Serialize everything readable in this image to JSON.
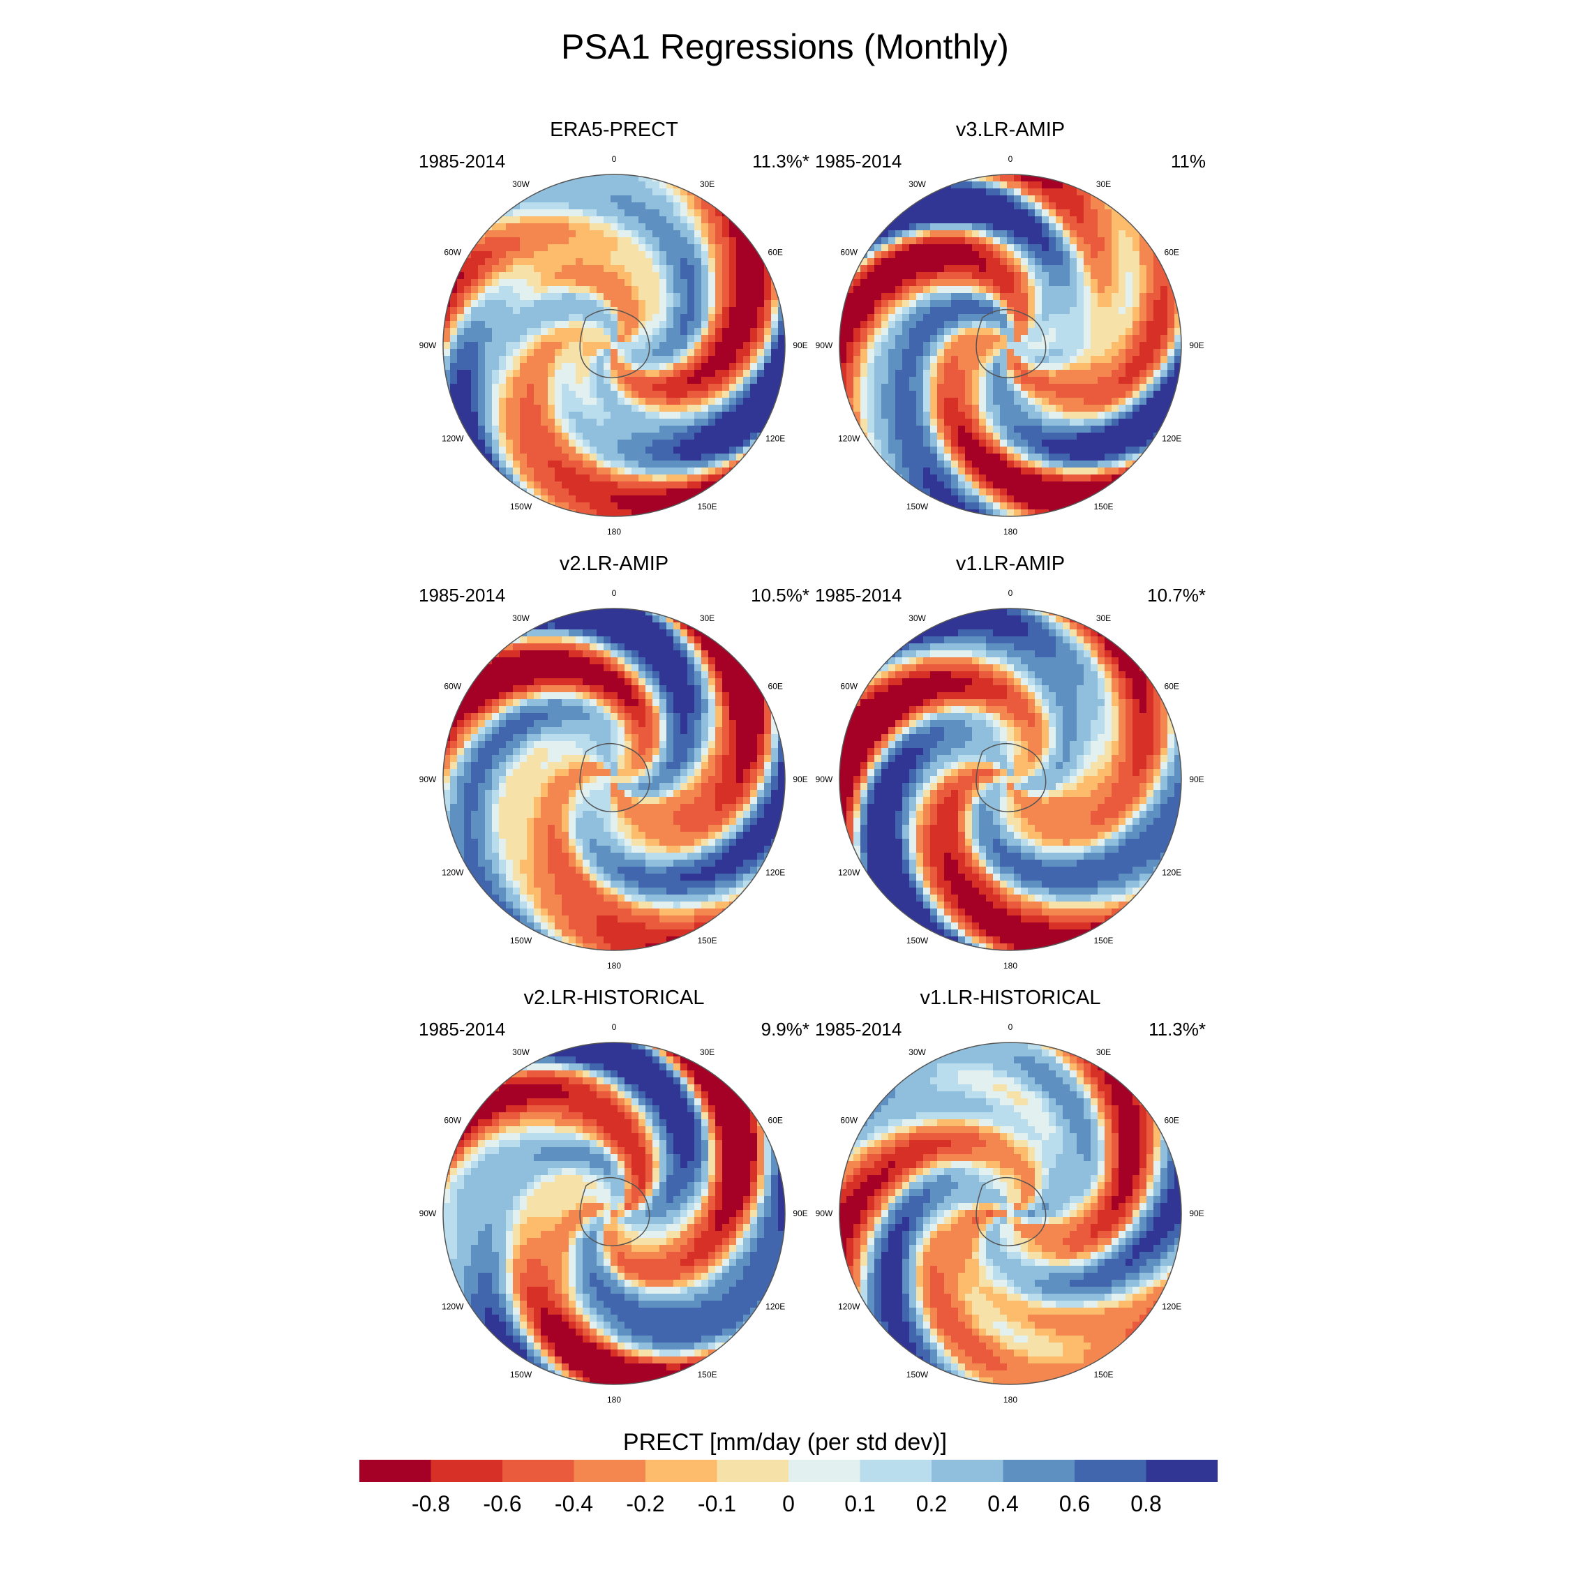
{
  "title": "PSA1 Regressions (Monthly)",
  "panels": [
    {
      "name": "ERA5-PRECT",
      "period": "1985-2014",
      "pct": "11.3%*",
      "pattern": {
        "phase": 0.0,
        "amp": 1.0,
        "seed": 1
      }
    },
    {
      "name": "v3.LR-AMIP",
      "period": "1985-2014",
      "pct": "11%",
      "pattern": {
        "phase": 0.3,
        "amp": 1.05,
        "seed": 2
      }
    },
    {
      "name": "v2.LR-AMIP",
      "period": "1985-2014",
      "pct": "10.5%*",
      "pattern": {
        "phase": -0.2,
        "amp": 0.95,
        "seed": 3
      }
    },
    {
      "name": "v1.LR-AMIP",
      "period": "1985-2014",
      "pct": "10.7%*",
      "pattern": {
        "phase": 0.15,
        "amp": 1.0,
        "seed": 4
      }
    },
    {
      "name": "v2.LR-HISTORICAL",
      "period": "1985-2014",
      "pct": "9.9%*",
      "pattern": {
        "phase": -0.5,
        "amp": 0.9,
        "seed": 5
      }
    },
    {
      "name": "v1.LR-HISTORICAL",
      "period": "1985-2014",
      "pct": "11.3%*",
      "pattern": {
        "phase": 0.6,
        "amp": 0.95,
        "seed": 6
      }
    }
  ],
  "lon_labels": [
    "0",
    "30E",
    "60E",
    "90E",
    "120E",
    "150E",
    "180",
    "150W",
    "120W",
    "90W",
    "60W",
    "30W"
  ],
  "colorbar": {
    "title": "PRECT [mm/day (per std dev)]",
    "colors": [
      "#a50026",
      "#d73027",
      "#ea5a3c",
      "#f4874f",
      "#fdbb6c",
      "#f6e1a8",
      "#e2f0ef",
      "#b9dded",
      "#8fbfdc",
      "#5f90c2",
      "#4266ad",
      "#313695"
    ],
    "labels": [
      "-0.8",
      "-0.6",
      "-0.4",
      "-0.2",
      "-0.1",
      "0",
      "0.1",
      "0.2",
      "0.4",
      "0.6",
      "0.8"
    ]
  }
}
